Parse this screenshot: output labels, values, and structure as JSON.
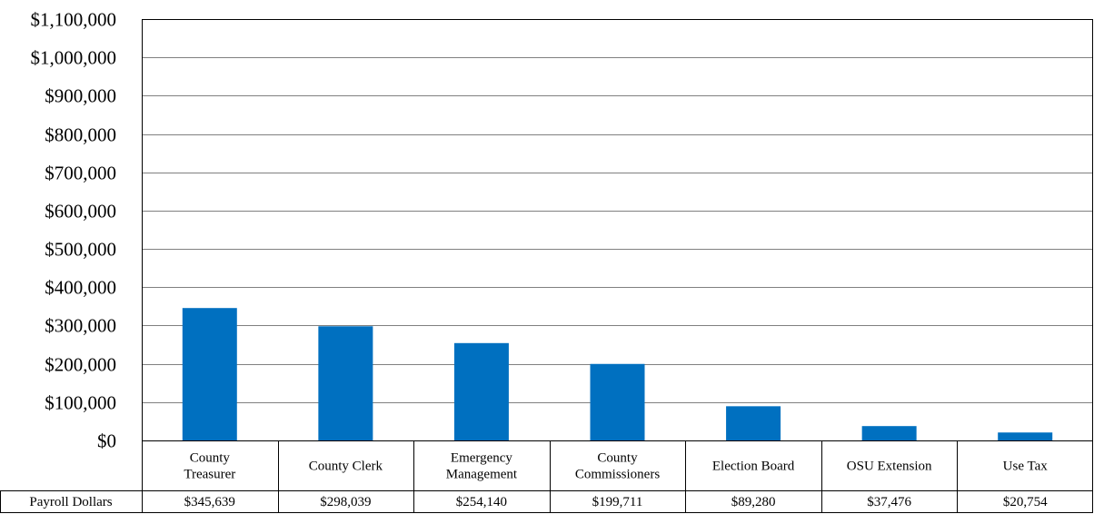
{
  "chart_data": {
    "type": "bar",
    "categories": [
      [
        "County",
        "Treasurer"
      ],
      [
        "County Clerk"
      ],
      [
        "Emergency",
        "Management"
      ],
      [
        "County",
        "Commissioners"
      ],
      [
        "Election Board"
      ],
      [
        "OSU Extension"
      ],
      [
        "Use Tax"
      ]
    ],
    "series": [
      {
        "name": "Payroll Dollars",
        "values": [
          345639,
          298039,
          254140,
          199711,
          89280,
          37476,
          20754
        ],
        "labels": [
          "$345,639",
          "$298,039",
          "$254,140",
          "$199,711",
          "$89,280",
          "$37,476",
          "$20,754"
        ],
        "color": "#0070C0"
      }
    ],
    "ylim": [
      0,
      1100000
    ],
    "yticks": [
      {
        "value": 0,
        "label": "$0"
      },
      {
        "value": 100000,
        "label": "$100,000"
      },
      {
        "value": 200000,
        "label": "$200,000"
      },
      {
        "value": 300000,
        "label": "$300,000"
      },
      {
        "value": 400000,
        "label": "$400,000"
      },
      {
        "value": 500000,
        "label": "$500,000"
      },
      {
        "value": 600000,
        "label": "$600,000"
      },
      {
        "value": 700000,
        "label": "$700,000"
      },
      {
        "value": 800000,
        "label": "$800,000"
      },
      {
        "value": 900000,
        "label": "$900,000"
      },
      {
        "value": 1000000,
        "label": "$1,000,000"
      },
      {
        "value": 1100000,
        "label": "$1,100,000"
      }
    ],
    "grid": true,
    "data_table": true,
    "gridline_color": "#808080"
  }
}
